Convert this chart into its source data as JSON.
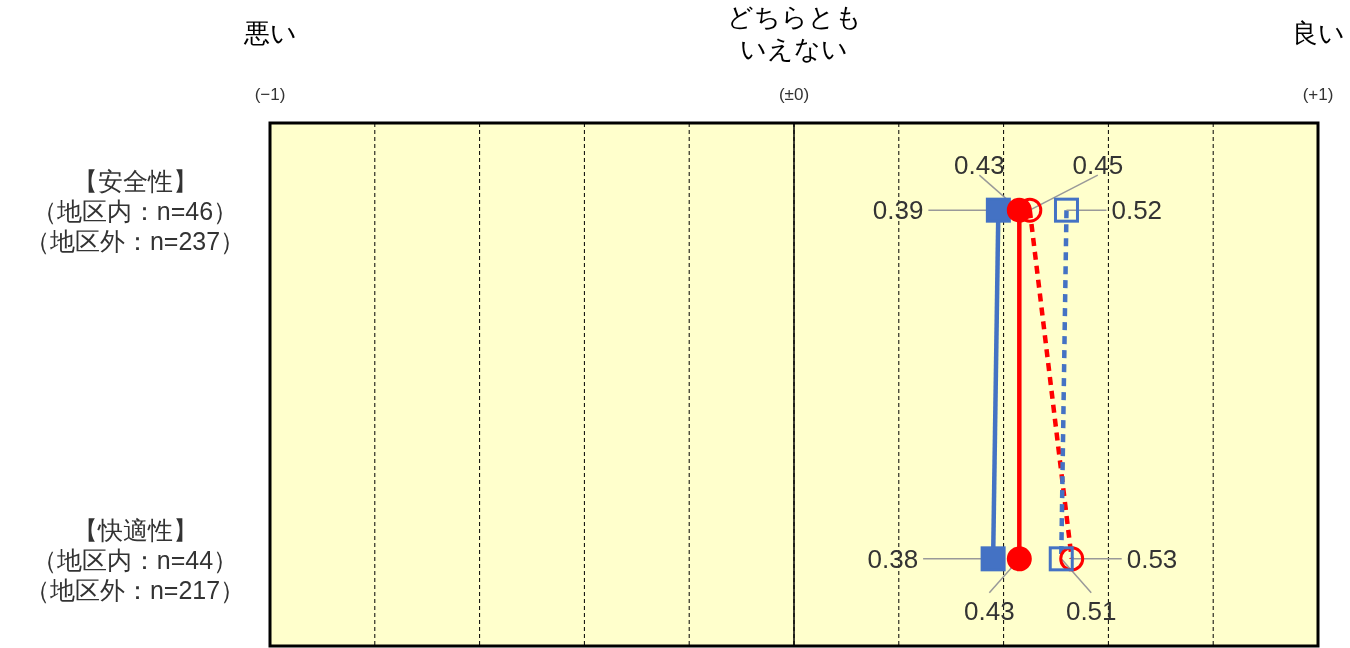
{
  "chart_data": {
    "type": "line",
    "orientation": "horizontal",
    "categories": [
      "【安全性】（地区内：n=46）（地区外：n=237）",
      "【快適性】（地区内：n=44）（地区外：n=217）"
    ],
    "xlim": [
      -1,
      1
    ],
    "xticks": [
      {
        "value": -1,
        "label": "(−1)"
      },
      {
        "value": -0.8,
        "label": null
      },
      {
        "value": -0.6,
        "label": null
      },
      {
        "value": -0.4,
        "label": null
      },
      {
        "value": -0.2,
        "label": null
      },
      {
        "value": 0,
        "label": "(±0)"
      },
      {
        "value": 0.2,
        "label": null
      },
      {
        "value": 0.4,
        "label": null
      },
      {
        "value": 0.6,
        "label": null
      },
      {
        "value": 0.8,
        "label": null
      },
      {
        "value": 1,
        "label": "(+1)"
      }
    ],
    "annotations": [
      "悪い",
      "どちらともいえない",
      "良い"
    ],
    "grid": "x",
    "ref_lines": [
      {
        "axis": "x",
        "value": 0,
        "color": "#000000",
        "line_style": "solid"
      }
    ],
    "bands": [
      {
        "axis": "x",
        "from": -1,
        "to": 1,
        "color": "#ffffcc"
      }
    ],
    "data_labels": true,
    "series": [
      {
        "color": "#4472c4",
        "values": [
          0.39,
          0.38
        ],
        "marker": "square",
        "line_style": "solid"
      },
      {
        "color": "#ff0000",
        "values": [
          0.43,
          0.43
        ],
        "marker": "circle",
        "line_style": "solid"
      },
      {
        "color": "#ff0000",
        "values": [
          0.45,
          0.53
        ],
        "marker": "circle",
        "line_style": "dashed"
      },
      {
        "color": "#4472c4",
        "values": [
          0.52,
          0.51
        ],
        "marker": "square",
        "line_style": "dashed"
      }
    ]
  }
}
